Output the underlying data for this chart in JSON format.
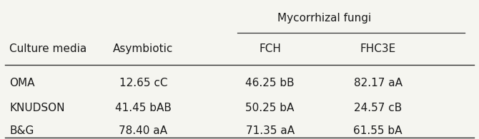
{
  "col_headers_row1_left": [
    "Culture media",
    "Asymbiotic"
  ],
  "mycorrhizal_label": "Mycorrhizal fungi",
  "col_headers_row2": [
    "FCH",
    "FHC3E"
  ],
  "rows": [
    [
      "OMA",
      "12.65 cC",
      "46.25 bB",
      "82.17 aA"
    ],
    [
      "KNUDSON",
      "41.45 bAB",
      "50.25 bA",
      "24.57 cB"
    ],
    [
      "B&G",
      "78.40 aA",
      "71.35 aA",
      "61.55 bA"
    ]
  ],
  "background_color": "#f5f5f0",
  "text_color": "#1a1a1a",
  "font_size": 11.0,
  "line_color": "#333333"
}
